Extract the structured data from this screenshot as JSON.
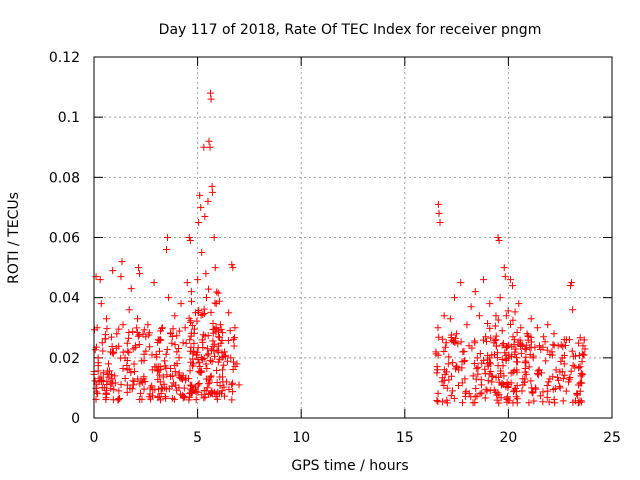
{
  "chart_data": {
    "type": "scatter",
    "title": "Day 117 of 2018, Rate Of TEC Index for receiver pngm",
    "xlabel": "GPS time / hours",
    "ylabel": "ROTI / TECUs",
    "xlim": [
      0,
      25
    ],
    "ylim": [
      0,
      0.12
    ],
    "xticks": [
      0,
      5,
      10,
      15,
      20,
      25
    ],
    "xtick_labels": [
      "0",
      "5",
      "10",
      "15",
      "20",
      "25"
    ],
    "yticks": [
      0,
      0.02,
      0.04,
      0.06,
      0.08,
      0.1,
      0.12
    ],
    "ytick_labels": [
      "0",
      "0.02",
      "0.04",
      "0.06",
      "0.08",
      "0.1",
      "0.12"
    ],
    "grid": true,
    "marker": "+",
    "color": "#ff0000",
    "series": [
      {
        "name": "ROTI",
        "points": [
          [
            0.1,
            0.047
          ],
          [
            0.15,
            0.03
          ],
          [
            0.2,
            0.02
          ],
          [
            0.25,
            0.012
          ],
          [
            0.3,
            0.046
          ],
          [
            0.35,
            0.038
          ],
          [
            0.4,
            0.025
          ],
          [
            0.45,
            0.015
          ],
          [
            0.5,
            0.01
          ],
          [
            0.6,
            0.033
          ],
          [
            0.7,
            0.018
          ],
          [
            0.8,
            0.022
          ],
          [
            0.9,
            0.049
          ],
          [
            1.0,
            0.014
          ],
          [
            1.1,
            0.028
          ],
          [
            1.2,
            0.009
          ],
          [
            1.3,
            0.047
          ],
          [
            1.35,
            0.052
          ],
          [
            1.4,
            0.031
          ],
          [
            1.5,
            0.02
          ],
          [
            1.6,
            0.016
          ],
          [
            1.7,
            0.036
          ],
          [
            1.8,
            0.043
          ],
          [
            1.9,
            0.011
          ],
          [
            2.0,
            0.024
          ],
          [
            2.1,
            0.033
          ],
          [
            2.15,
            0.05
          ],
          [
            2.2,
            0.048
          ],
          [
            2.3,
            0.019
          ],
          [
            2.4,
            0.013
          ],
          [
            2.5,
            0.027
          ],
          [
            2.6,
            0.031
          ],
          [
            2.7,
            0.008
          ],
          [
            2.8,
            0.021
          ],
          [
            2.9,
            0.045
          ],
          [
            3.0,
            0.017
          ],
          [
            3.1,
            0.026
          ],
          [
            3.2,
            0.012
          ],
          [
            3.3,
            0.03
          ],
          [
            3.4,
            0.019
          ],
          [
            3.5,
            0.056
          ],
          [
            3.55,
            0.06
          ],
          [
            3.6,
            0.04
          ],
          [
            3.7,
            0.028
          ],
          [
            3.8,
            0.014
          ],
          [
            3.9,
            0.034
          ],
          [
            4.0,
            0.022
          ],
          [
            4.1,
            0.01
          ],
          [
            4.2,
            0.038
          ],
          [
            4.3,
            0.025
          ],
          [
            4.4,
            0.03
          ],
          [
            4.5,
            0.045
          ],
          [
            4.6,
            0.06
          ],
          [
            4.65,
            0.059
          ],
          [
            4.7,
            0.042
          ],
          [
            4.8,
            0.018
          ],
          [
            4.9,
            0.035
          ],
          [
            5.0,
            0.046
          ],
          [
            5.05,
            0.065
          ],
          [
            5.1,
            0.074
          ],
          [
            5.15,
            0.07
          ],
          [
            5.2,
            0.055
          ],
          [
            5.3,
            0.09
          ],
          [
            5.35,
            0.067
          ],
          [
            5.4,
            0.048
          ],
          [
            5.5,
            0.072
          ],
          [
            5.55,
            0.092
          ],
          [
            5.6,
            0.09
          ],
          [
            5.62,
            0.108
          ],
          [
            5.65,
            0.106
          ],
          [
            5.7,
            0.077
          ],
          [
            5.72,
            0.075
          ],
          [
            5.8,
            0.06
          ],
          [
            5.85,
            0.05
          ],
          [
            5.9,
            0.038
          ],
          [
            6.0,
            0.027
          ],
          [
            6.1,
            0.031
          ],
          [
            6.2,
            0.016
          ],
          [
            6.3,
            0.022
          ],
          [
            6.4,
            0.012
          ],
          [
            6.5,
            0.035
          ],
          [
            6.6,
            0.02
          ],
          [
            6.65,
            0.051
          ],
          [
            6.7,
            0.05
          ],
          [
            6.8,
            0.03
          ],
          [
            6.9,
            0.018
          ],
          [
            7.0,
            0.011
          ],
          [
            16.5,
            0.022
          ],
          [
            16.55,
            0.015
          ],
          [
            16.6,
            0.03
          ],
          [
            16.62,
            0.071
          ],
          [
            16.65,
            0.068
          ],
          [
            16.7,
            0.065
          ],
          [
            16.8,
            0.012
          ],
          [
            16.9,
            0.034
          ],
          [
            17.0,
            0.025
          ],
          [
            17.1,
            0.018
          ],
          [
            17.2,
            0.033
          ],
          [
            17.3,
            0.009
          ],
          [
            17.4,
            0.04
          ],
          [
            17.5,
            0.028
          ],
          [
            17.6,
            0.016
          ],
          [
            17.7,
            0.045
          ],
          [
            17.8,
            0.022
          ],
          [
            17.9,
            0.013
          ],
          [
            18.0,
            0.031
          ],
          [
            18.1,
            0.024
          ],
          [
            18.2,
            0.037
          ],
          [
            18.3,
            0.014
          ],
          [
            18.4,
            0.042
          ],
          [
            18.5,
            0.02
          ],
          [
            18.6,
            0.034
          ],
          [
            18.7,
            0.011
          ],
          [
            18.8,
            0.046
          ],
          [
            18.9,
            0.027
          ],
          [
            19.0,
            0.018
          ],
          [
            19.1,
            0.038
          ],
          [
            19.2,
            0.012
          ],
          [
            19.3,
            0.025
          ],
          [
            19.4,
            0.034
          ],
          [
            19.5,
            0.06
          ],
          [
            19.55,
            0.059
          ],
          [
            19.6,
            0.04
          ],
          [
            19.7,
            0.029
          ],
          [
            19.8,
            0.05
          ],
          [
            19.85,
            0.047
          ],
          [
            19.9,
            0.034
          ],
          [
            20.0,
            0.02
          ],
          [
            20.1,
            0.046
          ],
          [
            20.2,
            0.044
          ],
          [
            20.3,
            0.026
          ],
          [
            20.4,
            0.016
          ],
          [
            20.5,
            0.038
          ],
          [
            20.6,
            0.03
          ],
          [
            20.7,
            0.011
          ],
          [
            20.8,
            0.023
          ],
          [
            20.9,
            0.028
          ],
          [
            21.0,
            0.017
          ],
          [
            21.1,
            0.033
          ],
          [
            21.2,
            0.02
          ],
          [
            21.3,
            0.01
          ],
          [
            21.4,
            0.03
          ],
          [
            21.5,
            0.024
          ],
          [
            21.6,
            0.015
          ],
          [
            21.7,
            0.027
          ],
          [
            21.8,
            0.019
          ],
          [
            21.9,
            0.031
          ],
          [
            22.0,
            0.013
          ],
          [
            22.1,
            0.022
          ],
          [
            22.2,
            0.028
          ],
          [
            22.3,
            0.016
          ],
          [
            22.4,
            0.024
          ],
          [
            22.5,
            0.01
          ],
          [
            22.6,
            0.02
          ],
          [
            22.7,
            0.018
          ],
          [
            22.8,
            0.026
          ],
          [
            22.9,
            0.012
          ],
          [
            23.0,
            0.044
          ],
          [
            23.05,
            0.045
          ],
          [
            23.1,
            0.036
          ],
          [
            23.2,
            0.017
          ],
          [
            23.3,
            0.008
          ],
          [
            23.5,
            0.014
          ],
          [
            23.6,
            0.024
          ],
          [
            23.65,
            0.021
          ]
        ]
      }
    ],
    "dense_bands": [
      {
        "x": [
          0.0,
          7.0
        ],
        "y": [
          0.006,
          0.03
        ],
        "count": 260,
        "seed": 7
      },
      {
        "x": [
          4.5,
          6.2
        ],
        "y": [
          0.008,
          0.044
        ],
        "count": 90,
        "seed": 13
      },
      {
        "x": [
          16.5,
          23.7
        ],
        "y": [
          0.005,
          0.028
        ],
        "count": 230,
        "seed": 29
      },
      {
        "x": [
          18.8,
          20.6
        ],
        "y": [
          0.006,
          0.036
        ],
        "count": 60,
        "seed": 41
      }
    ]
  }
}
